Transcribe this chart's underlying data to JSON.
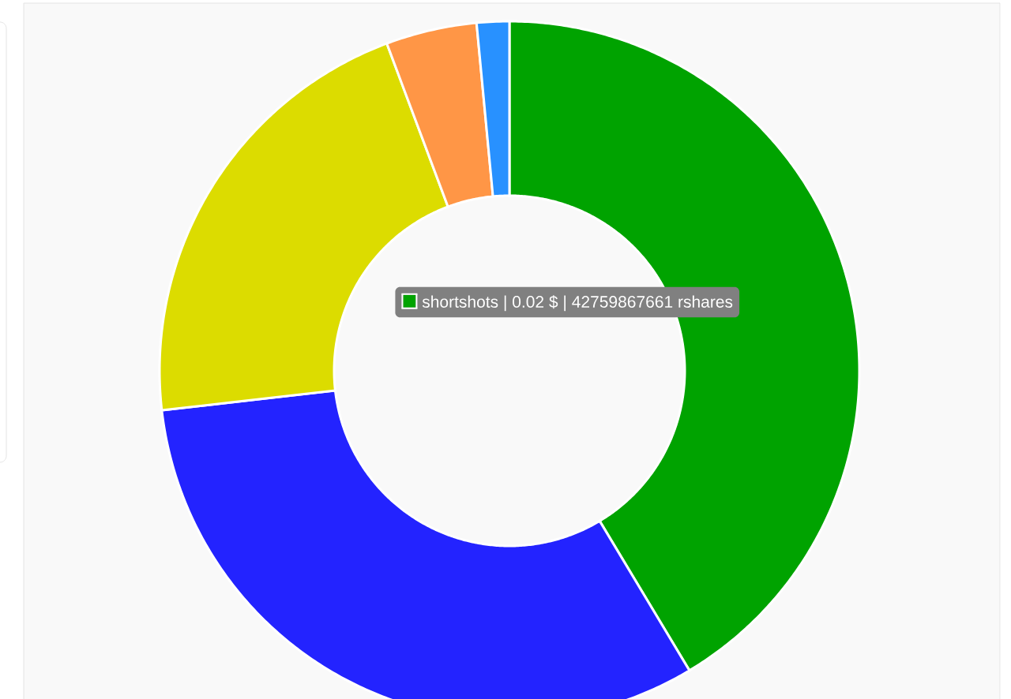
{
  "chart_data": {
    "type": "donut",
    "categories": [
      null,
      null,
      null,
      null,
      null
    ],
    "values": [
      41.4,
      31.8,
      21.1,
      4.2,
      1.5
    ],
    "colors": [
      "#00a300",
      "#2323ff",
      "#dcdc00",
      "#ff9646",
      "#2891ff"
    ],
    "annotations": [
      "shortshots | 0.02 $ | 42759867661 rshares"
    ]
  }
}
